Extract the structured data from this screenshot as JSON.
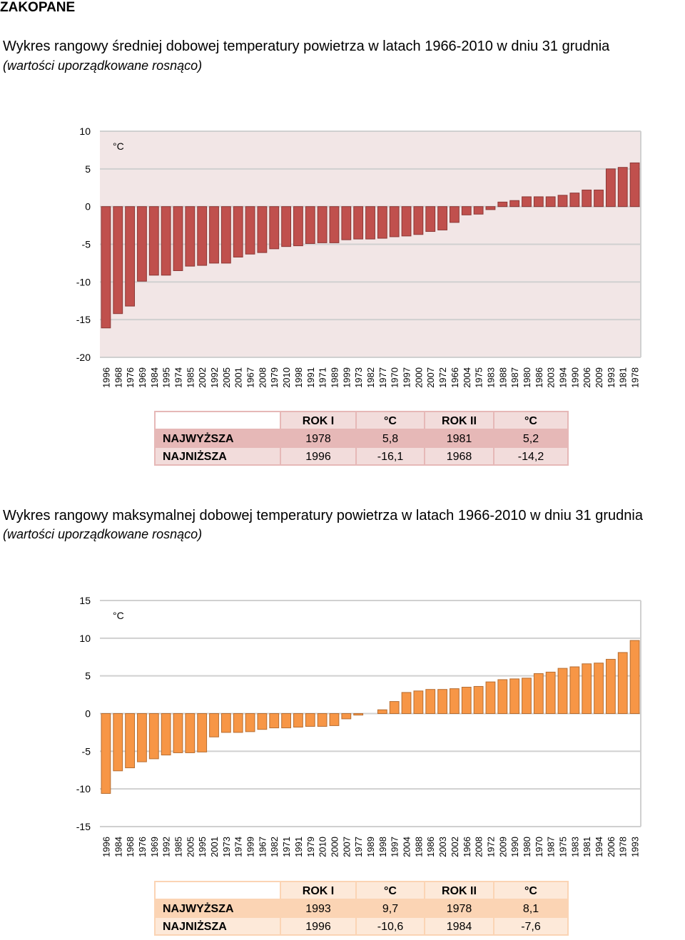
{
  "header": {
    "title": "ZAKOPANE"
  },
  "sections": [
    {
      "title": "Wykres rangowy średniej dobowej temperatury powietrza w latach 1966-2010 w dniu 31 grudnia",
      "subtitle": "(wartości uporządkowane rosnąco)",
      "chart_data": {
        "type": "bar",
        "unit": "°C",
        "color": "#c0504d",
        "grid": true,
        "categories": [
          "1996",
          "1968",
          "1976",
          "1969",
          "1984",
          "1995",
          "1974",
          "1985",
          "2002",
          "1992",
          "2005",
          "2001",
          "1967",
          "2008",
          "1979",
          "2010",
          "1998",
          "1991",
          "1971",
          "1989",
          "1999",
          "1973",
          "1982",
          "1977",
          "1970",
          "1997",
          "2000",
          "2007",
          "1972",
          "1966",
          "2004",
          "1975",
          "1983",
          "1988",
          "1987",
          "1980",
          "1986",
          "2003",
          "1994",
          "1990",
          "2006",
          "2009",
          "1993",
          "1981",
          "1978"
        ],
        "values": [
          -16.1,
          -14.2,
          -13.2,
          -9.9,
          -9.1,
          -9.1,
          -8.5,
          -7.9,
          -7.8,
          -7.5,
          -7.5,
          -6.7,
          -6.3,
          -6.1,
          -5.6,
          -5.3,
          -5.2,
          -4.9,
          -4.8,
          -4.8,
          -4.4,
          -4.3,
          -4.3,
          -4.2,
          -4.0,
          -3.9,
          -3.7,
          -3.3,
          -3.1,
          -2.1,
          -1.1,
          -1.0,
          -0.4,
          0.6,
          0.8,
          1.3,
          1.3,
          1.3,
          1.5,
          1.8,
          2.2,
          2.2,
          5.0,
          5.2,
          5.8
        ],
        "ylim": [
          -20,
          10
        ],
        "yticks": [
          -20,
          -15,
          -10,
          -5,
          0,
          5,
          10
        ]
      },
      "table": {
        "header": [
          "ROK I",
          "°C",
          "ROK II",
          "°C"
        ],
        "rows": [
          [
            "NAJWYŻSZA",
            "1978",
            "5,8",
            "1981",
            "5,2"
          ],
          [
            "NAJNIŻSZA",
            "1996",
            "-16,1",
            "1968",
            "-14,2"
          ]
        ]
      }
    },
    {
      "title": "Wykres rangowy maksymalnej dobowej temperatury powietrza w latach 1966-2010 w dniu 31 grudnia",
      "subtitle": "(wartości uporządkowane rosnąco)",
      "chart_data": {
        "type": "bar",
        "unit": "°C",
        "color": "#f79646",
        "grid": true,
        "categories": [
          "1996",
          "1984",
          "1968",
          "1976",
          "1969",
          "1992",
          "1985",
          "2005",
          "1995",
          "2001",
          "1973",
          "1974",
          "1999",
          "1967",
          "1982",
          "1971",
          "1991",
          "1979",
          "2010",
          "2000",
          "2007",
          "1977",
          "1989",
          "1998",
          "1997",
          "2004",
          "1988",
          "1986",
          "2003",
          "2002",
          "1966",
          "2008",
          "1972",
          "2009",
          "1990",
          "1980",
          "1970",
          "1987",
          "1975",
          "1983",
          "1981",
          "1994",
          "2006",
          "1978",
          "1993"
        ],
        "values": [
          -10.6,
          -7.6,
          -7.2,
          -6.4,
          -6.0,
          -5.5,
          -5.2,
          -5.2,
          -5.1,
          -3.1,
          -2.5,
          -2.5,
          -2.4,
          -2.1,
          -1.9,
          -1.9,
          -1.8,
          -1.7,
          -1.7,
          -1.6,
          -0.7,
          -0.2,
          0,
          0.5,
          1.6,
          2.8,
          3.0,
          3.2,
          3.2,
          3.3,
          3.5,
          3.6,
          4.2,
          4.5,
          4.6,
          4.7,
          5.3,
          5.5,
          6.0,
          6.2,
          6.6,
          6.7,
          7.2,
          8.1,
          9.7
        ],
        "ylim": [
          -15,
          15
        ],
        "yticks": [
          -15,
          -10,
          -5,
          0,
          5,
          10,
          15
        ]
      },
      "table": {
        "header": [
          "ROK I",
          "°C",
          "ROK II",
          "°C"
        ],
        "rows": [
          [
            "NAJWYŻSZA",
            "1993",
            "9,7",
            "1978",
            "8,1"
          ],
          [
            "NAJNIŻSZA",
            "1996",
            "-10,6",
            "1984",
            "-7,6"
          ]
        ]
      }
    }
  ]
}
